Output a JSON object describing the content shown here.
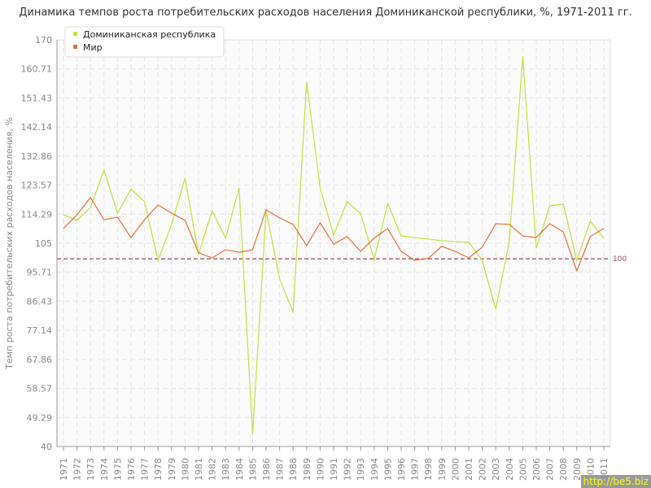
{
  "chart_data": {
    "type": "line",
    "title": "Динамика темпов роста потребительских расходов населения Доминиканской республики, %, 1971-2011 гг.",
    "ylabel": "Темп роста потребительских расходов населения, %",
    "xlabel": "",
    "ylim": [
      40,
      170
    ],
    "yticks": [
      "40",
      "49.29",
      "58.57",
      "67.86",
      "77.14",
      "86.43",
      "95.71",
      "105",
      "114.29",
      "123.57",
      "132.86",
      "142.14",
      "151.43",
      "160.71",
      "170"
    ],
    "grid": true,
    "legend_position": "top-left",
    "reference_line": {
      "value": 100,
      "label": "100",
      "color": "#9b4a5a"
    },
    "x": [
      "1971",
      "1972",
      "1973",
      "1974",
      "1975",
      "1976",
      "1977",
      "1978",
      "1979",
      "1980",
      "1981",
      "1982",
      "1983",
      "1984",
      "1985",
      "1986",
      "1987",
      "1988",
      "1989",
      "1990",
      "1991",
      "1992",
      "1993",
      "1994",
      "1995",
      "1996",
      "1997",
      "1998",
      "1999",
      "2000",
      "2001",
      "2002",
      "2003",
      "2004",
      "2005",
      "2006",
      "2007",
      "2008",
      "2009",
      "2010",
      "2011"
    ],
    "series": [
      {
        "name": "Доминиканская республика",
        "color": "#c5e03a",
        "values": [
          114.1,
          112.3,
          116.4,
          128.4,
          114.6,
          122.2,
          118.3,
          99.5,
          111,
          125.8,
          101.4,
          115.4,
          106.6,
          122.7,
          43.9,
          115.4,
          93.6,
          82.9,
          156.5,
          122.7,
          107.6,
          118.3,
          114.4,
          99.8,
          117.7,
          107.3,
          106.8,
          106.3,
          105.8,
          105.5,
          105.3,
          99.5,
          83.9,
          105.5,
          164.8,
          103.4,
          117,
          117.5,
          99.5,
          112,
          106.6
        ]
      },
      {
        "name": "Мир",
        "color": "#e8703a",
        "values": [
          109.7,
          114.1,
          119.6,
          112.5,
          113.3,
          106.8,
          112.5,
          117.2,
          114.6,
          112.3,
          101.9,
          100.3,
          102.9,
          102.1,
          102.9,
          115.7,
          113.1,
          111,
          104.2,
          111.5,
          104.7,
          107.1,
          102.4,
          106.6,
          109.7,
          102.4,
          99.5,
          100.1,
          104,
          102.4,
          100.3,
          103.7,
          111.2,
          111,
          107.3,
          106.8,
          111.2,
          108.6,
          96.2,
          107.1,
          109.7
        ]
      }
    ]
  },
  "watermark": "http://be5.biz"
}
